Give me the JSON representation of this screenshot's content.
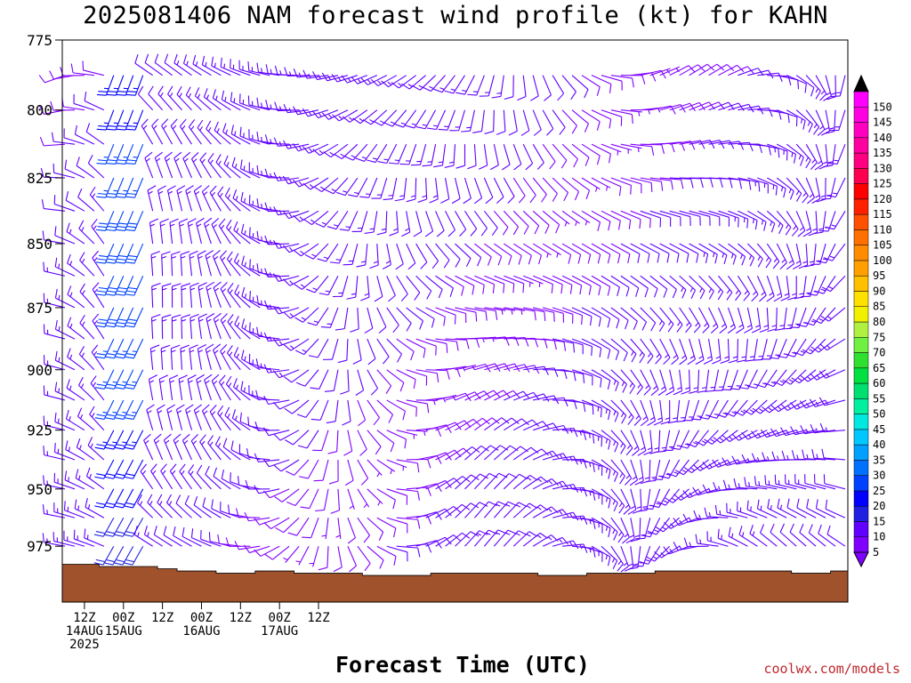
{
  "title": "2025081406 NAM forecast wind profile (kt) for KAHN",
  "credit": "coolwx.com/models",
  "chart_data": {
    "type": "wind-barb-profile",
    "title": "2025081406 NAM forecast wind profile (kt) for KAHN",
    "xlabel": "Forecast Time (UTC)",
    "ylabel": "",
    "y_axis": {
      "unit": "hPa",
      "range": [
        775,
        1000
      ],
      "ticks": [
        775,
        800,
        825,
        850,
        875,
        900,
        925,
        950,
        975
      ],
      "inverted": true
    },
    "x_axis": {
      "range": [
        "2025-08-14T06Z",
        "2025-08-17T06Z+"
      ],
      "step_hours": 3,
      "ticks": [
        {
          "label": "12Z",
          "date": "14AUG",
          "year": "2025"
        },
        {
          "label": "00Z",
          "date": "15AUG",
          "year": ""
        },
        {
          "label": "12Z",
          "date": "",
          "year": ""
        },
        {
          "label": "00Z",
          "date": "16AUG",
          "year": ""
        },
        {
          "label": "12Z",
          "date": "",
          "year": ""
        },
        {
          "label": "00Z",
          "date": "17AUG",
          "year": ""
        },
        {
          "label": "12Z",
          "date": "",
          "year": ""
        }
      ]
    },
    "colorbar": {
      "unit": "kt",
      "levels": [
        5,
        10,
        15,
        20,
        25,
        30,
        35,
        40,
        45,
        50,
        55,
        60,
        65,
        70,
        75,
        80,
        85,
        90,
        95,
        100,
        105,
        110,
        115,
        120,
        125,
        130,
        135,
        140,
        145,
        150
      ],
      "colors": [
        "#8000ff",
        "#6000ff",
        "#2020e0",
        "#0000ff",
        "#0040ff",
        "#0070ff",
        "#00a0ff",
        "#00c8ff",
        "#00e8e0",
        "#00f0a0",
        "#00e070",
        "#00e040",
        "#30e030",
        "#70f040",
        "#b0f040",
        "#f0f000",
        "#ffe000",
        "#ffc000",
        "#ffa000",
        "#ff8c00",
        "#ff7000",
        "#ff5000",
        "#ff2000",
        "#ff0000",
        "#ff0050",
        "#ff0080",
        "#ff00a0",
        "#ff00c0",
        "#ff00e0",
        "#ff00ff"
      ]
    },
    "ground_color": "#a0522d",
    "ground_pressure_hpa": [
      983,
      983,
      983,
      983,
      984,
      984,
      984,
      984,
      984,
      984,
      985,
      985,
      986,
      986,
      986,
      986,
      987,
      987,
      987,
      987,
      986,
      986,
      986,
      986,
      987,
      987,
      987,
      987,
      987,
      987,
      987,
      988,
      988,
      988,
      988,
      988,
      988,
      988,
      987,
      987,
      987,
      987,
      987,
      987,
      987,
      987,
      987,
      987,
      987,
      988,
      988,
      988,
      988,
      988,
      987,
      987,
      987,
      987,
      987,
      987,
      987,
      986,
      986,
      986,
      986,
      986,
      986,
      986,
      986,
      986,
      986,
      986,
      986,
      986,
      986,
      987,
      987,
      987,
      987,
      986,
      986
    ],
    "wind_speed_range_kt": [
      5,
      35
    ]
  }
}
